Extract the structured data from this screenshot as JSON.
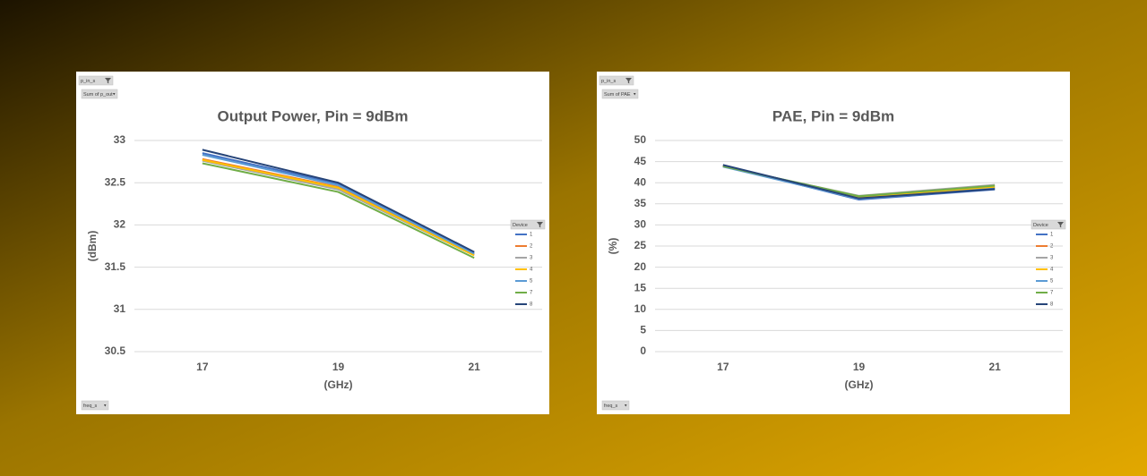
{
  "chart_data": [
    {
      "type": "line",
      "title": "Output Power, Pin = 9dBm",
      "y_label": "(dBm)",
      "x_label": "(GHz)",
      "filter_field": "p_in_s",
      "value_field": "Sum of p_out",
      "axis_field": "freq_s",
      "legend_title": "Device",
      "categories": [
        "17",
        "19",
        "21"
      ],
      "ylim": [
        30.5,
        33
      ],
      "yticks": [
        30.5,
        31,
        31.5,
        32,
        32.5,
        33
      ],
      "grid": true,
      "legend": "right",
      "series": [
        {
          "name": "1",
          "color": "#4472c4",
          "values": [
            32.85,
            32.49,
            31.67
          ]
        },
        {
          "name": "2",
          "color": "#ed7d31",
          "values": [
            32.78,
            32.45,
            31.65
          ]
        },
        {
          "name": "3",
          "color": "#a5a5a5",
          "values": [
            32.76,
            32.42,
            31.64
          ]
        },
        {
          "name": "4",
          "color": "#ffc000",
          "values": [
            32.77,
            32.44,
            31.64
          ]
        },
        {
          "name": "5",
          "color": "#5b9bd5",
          "values": [
            32.83,
            32.47,
            31.66
          ]
        },
        {
          "name": "7",
          "color": "#70ad47",
          "values": [
            32.73,
            32.39,
            31.61
          ]
        },
        {
          "name": "8",
          "color": "#264478",
          "values": [
            32.89,
            32.5,
            31.68
          ]
        }
      ]
    },
    {
      "type": "line",
      "title": "PAE, Pin = 9dBm",
      "y_label": "(%)",
      "x_label": "(GHz)",
      "filter_field": "p_in_s",
      "value_field": "Sum of PAE",
      "axis_field": "freq_s",
      "legend_title": "Device",
      "categories": [
        "17",
        "19",
        "21"
      ],
      "ylim": [
        0,
        50
      ],
      "yticks": [
        0,
        5,
        10,
        15,
        20,
        25,
        30,
        35,
        40,
        45,
        50
      ],
      "grid": true,
      "legend": "right",
      "series": [
        {
          "name": "1",
          "color": "#4472c4",
          "values": [
            44.1,
            36.0,
            38.4
          ]
        },
        {
          "name": "2",
          "color": "#ed7d31",
          "values": [
            44.0,
            36.4,
            38.8
          ]
        },
        {
          "name": "3",
          "color": "#a5a5a5",
          "values": [
            43.8,
            36.9,
            39.5
          ]
        },
        {
          "name": "4",
          "color": "#ffc000",
          "values": [
            43.9,
            36.6,
            39.0
          ]
        },
        {
          "name": "5",
          "color": "#5b9bd5",
          "values": [
            43.8,
            36.2,
            38.6
          ]
        },
        {
          "name": "7",
          "color": "#70ad47",
          "values": [
            43.9,
            36.8,
            39.3
          ]
        },
        {
          "name": "8",
          "color": "#264478",
          "values": [
            44.2,
            36.3,
            38.5
          ]
        }
      ]
    }
  ]
}
